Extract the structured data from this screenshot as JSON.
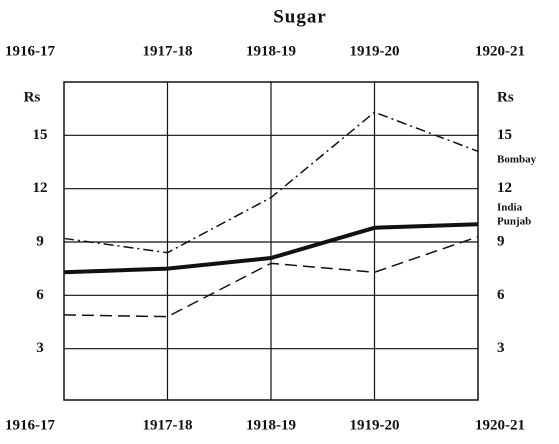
{
  "chart_data": {
    "type": "line",
    "title": "Sugar",
    "y_label": "Rs",
    "categories": [
      "1916-17",
      "1917-18",
      "1918-19",
      "1919-20",
      "1920-21"
    ],
    "series": [
      {
        "name": "Bombay",
        "color": "#111111",
        "style": "dashdot",
        "values": [
          9.2,
          8.4,
          11.5,
          16.3,
          14.1
        ]
      },
      {
        "name": "India",
        "color": "#111111",
        "style": "thick",
        "values": [
          7.3,
          7.5,
          8.1,
          9.8,
          10.0
        ]
      },
      {
        "name": "Punjab",
        "color": "#111111",
        "style": "dashed",
        "values": [
          4.9,
          4.8,
          7.8,
          7.3,
          9.3
        ]
      }
    ],
    "ylim": [
      0,
      18
    ],
    "yticks": [
      3,
      6,
      9,
      12,
      15
    ],
    "grid": true
  }
}
